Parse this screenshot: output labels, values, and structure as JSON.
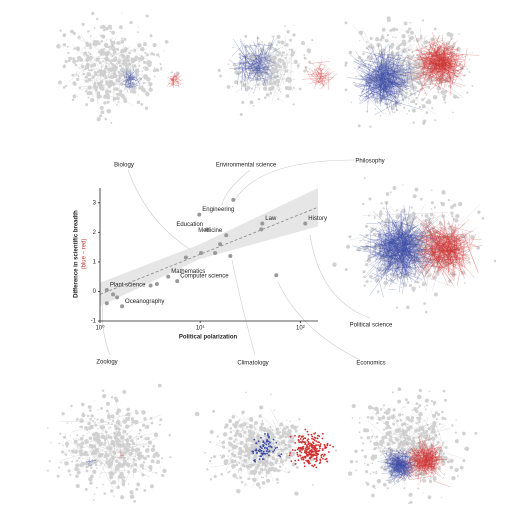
{
  "chart_data": {
    "type": "scatter",
    "xlabel": "Political polarization",
    "ylabel": "Difference in scientific breadth",
    "ylabel_sub": "(blue − red)",
    "xscale": "log",
    "xlim": [
      1,
      150
    ],
    "ylim": [
      -1,
      3.5
    ],
    "xticks": [
      {
        "value": 1,
        "label": "10⁰"
      },
      {
        "value": 10,
        "label": "10¹"
      },
      {
        "value": 100,
        "label": "10²"
      }
    ],
    "yticks": [
      -1,
      0,
      1,
      2,
      3
    ],
    "color": "#999999",
    "x": [
      9.8,
      21.4,
      11.7,
      18.2,
      41.7,
      40.7,
      112,
      15.8,
      10.2,
      14.1,
      20,
      7.2,
      4.8,
      5.9,
      3.7,
      3.2,
      1.17,
      1.35,
      1.48,
      1.17,
      1.66,
      57.5
    ],
    "values": [
      2.6,
      3.1,
      2.1,
      1.9,
      2.3,
      2.1,
      2.3,
      1.6,
      1.3,
      1.3,
      1.2,
      1.15,
      0.5,
      0.35,
      0.25,
      0.2,
      0.05,
      -0.1,
      -0.2,
      -0.4,
      -0.5,
      0.55
    ],
    "point_labels": [
      "Engineering",
      null,
      "Education",
      "Medicine",
      "Law",
      null,
      "History",
      null,
      null,
      null,
      null,
      null,
      "Mathematics",
      "Computer science",
      null,
      null,
      "Plant science",
      null,
      null,
      null,
      "Oceanography",
      null
    ],
    "trend": {
      "x": [
        1,
        150
      ],
      "y": [
        -0.1,
        2.85
      ]
    },
    "trend_band": {
      "x": [
        1,
        10,
        150
      ],
      "lower": [
        -0.5,
        1.1,
        2.2
      ],
      "upper": [
        0.3,
        1.6,
        3.5
      ]
    }
  },
  "network_labels": [
    "Biology",
    "Environmental science",
    "Philosophy",
    "Political science",
    "Zoology",
    "Climatology",
    "Economics"
  ]
}
